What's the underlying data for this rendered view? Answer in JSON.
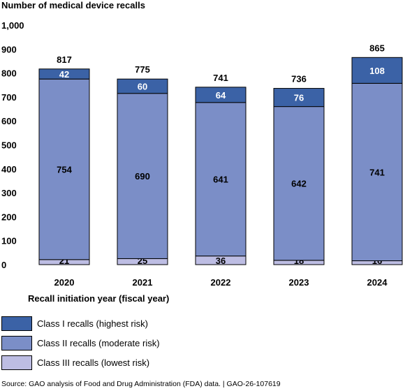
{
  "chart_data": {
    "type": "bar",
    "stacked": true,
    "ylabel": "Number of medical device recalls",
    "xlabel": "Recall initiation year (fiscal year)",
    "ylim": [
      0,
      1000
    ],
    "yticks": [
      0,
      100,
      200,
      300,
      400,
      500,
      600,
      700,
      800,
      900,
      1000
    ],
    "ytick_labels": [
      "0",
      "100",
      "200",
      "300",
      "400",
      "500",
      "600",
      "700",
      "800",
      "900",
      "1,000"
    ],
    "categories": [
      "2020",
      "2021",
      "2022",
      "2023",
      "2024"
    ],
    "series": [
      {
        "name": "Class III recalls (lowest risk)",
        "values": [
          21,
          25,
          36,
          18,
          16
        ],
        "color": "#bdbde3",
        "label_color": "#000000"
      },
      {
        "name": "Class II recalls (moderate risk)",
        "values": [
          754,
          690,
          641,
          642,
          741
        ],
        "color": "#7b8ec7",
        "label_color": "#000000"
      },
      {
        "name": "Class I recalls (highest risk)",
        "values": [
          42,
          60,
          64,
          76,
          108
        ],
        "color": "#3b62a6",
        "label_color": "#ffffff"
      }
    ],
    "totals": [
      817,
      775,
      741,
      736,
      865
    ],
    "grid": false,
    "legend_position": "bottom-left"
  },
  "legend": [
    {
      "label": "Class I recalls (highest risk)",
      "color": "#3b62a6"
    },
    {
      "label": "Class II recalls (moderate risk)",
      "color": "#7b8ec7"
    },
    {
      "label": "Class III recalls (lowest risk)",
      "color": "#bdbde3"
    }
  ],
  "source": "Source: GAO analysis of Food and Drug Administration (FDA) data.  |  GAO-26-107619"
}
